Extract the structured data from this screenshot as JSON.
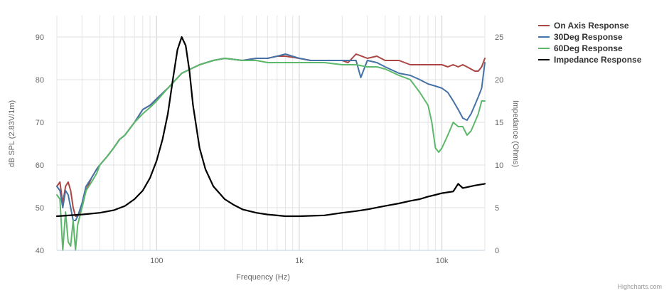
{
  "chart_data": {
    "type": "line",
    "xlabel": "Frequency (Hz)",
    "ylabel_left": "dB SPL (2.83V/1m)",
    "ylabel_right": "Impedance (Ohms)",
    "x_scale": "log",
    "xlim": [
      20,
      20000
    ],
    "x_ticks": [
      100,
      1000,
      10000
    ],
    "x_tick_labels": [
      "100",
      "1k",
      "10k"
    ],
    "ylim_left": [
      40,
      95
    ],
    "y_ticks_left": [
      40,
      50,
      60,
      70,
      80,
      90
    ],
    "ylim_right": [
      0,
      27.5
    ],
    "y_ticks_right": [
      0,
      5,
      10,
      15,
      20,
      25
    ],
    "grid": true,
    "legend_position": "top-right",
    "credit": "Highcharts.com",
    "series": [
      {
        "name": "On Axis Response",
        "axis": "left",
        "color": "#aa4643",
        "points": [
          [
            20,
            55
          ],
          [
            21,
            56
          ],
          [
            22,
            51
          ],
          [
            23,
            55
          ],
          [
            24,
            56
          ],
          [
            25,
            54
          ],
          [
            26,
            50
          ],
          [
            27,
            48
          ],
          [
            28,
            48
          ],
          [
            30,
            50
          ],
          [
            32,
            54
          ],
          [
            35,
            57
          ],
          [
            38,
            59
          ],
          [
            40,
            60
          ],
          [
            45,
            62
          ],
          [
            50,
            64
          ],
          [
            55,
            66
          ],
          [
            60,
            67
          ],
          [
            70,
            70
          ],
          [
            80,
            73
          ],
          [
            90,
            74
          ],
          [
            100,
            75.5
          ],
          [
            120,
            78
          ],
          [
            150,
            81.5
          ],
          [
            200,
            83.5
          ],
          [
            250,
            84.5
          ],
          [
            300,
            85
          ],
          [
            400,
            84.5
          ],
          [
            500,
            85
          ],
          [
            600,
            85
          ],
          [
            700,
            85.5
          ],
          [
            800,
            85.5
          ],
          [
            1000,
            85
          ],
          [
            1200,
            84.5
          ],
          [
            1500,
            84.5
          ],
          [
            2000,
            84.5
          ],
          [
            2200,
            84
          ],
          [
            2500,
            86
          ],
          [
            3000,
            85
          ],
          [
            3500,
            85.5
          ],
          [
            4000,
            84.5
          ],
          [
            5000,
            84.5
          ],
          [
            6000,
            83.5
          ],
          [
            7000,
            83.5
          ],
          [
            8000,
            83.5
          ],
          [
            9000,
            83.5
          ],
          [
            10000,
            83.5
          ],
          [
            11000,
            83
          ],
          [
            12000,
            83.5
          ],
          [
            13000,
            83
          ],
          [
            14000,
            83.5
          ],
          [
            15000,
            83
          ],
          [
            17000,
            82
          ],
          [
            18000,
            82
          ],
          [
            19000,
            83
          ],
          [
            20000,
            85
          ]
        ]
      },
      {
        "name": "30Deg Response",
        "axis": "left",
        "color": "#4572a7",
        "points": [
          [
            20,
            55
          ],
          [
            21,
            54
          ],
          [
            22,
            50
          ],
          [
            23,
            54
          ],
          [
            24,
            53
          ],
          [
            25,
            50
          ],
          [
            26,
            47
          ],
          [
            27,
            47
          ],
          [
            28,
            48
          ],
          [
            30,
            51
          ],
          [
            32,
            55
          ],
          [
            35,
            57
          ],
          [
            38,
            59
          ],
          [
            40,
            60
          ],
          [
            45,
            62
          ],
          [
            50,
            64
          ],
          [
            55,
            66
          ],
          [
            60,
            67
          ],
          [
            70,
            70
          ],
          [
            80,
            73
          ],
          [
            90,
            74
          ],
          [
            100,
            75.5
          ],
          [
            120,
            78
          ],
          [
            150,
            81.5
          ],
          [
            200,
            83.5
          ],
          [
            250,
            84.5
          ],
          [
            300,
            85
          ],
          [
            400,
            84.5
          ],
          [
            500,
            85
          ],
          [
            600,
            85
          ],
          [
            700,
            85.5
          ],
          [
            800,
            86
          ],
          [
            1000,
            85
          ],
          [
            1200,
            84.5
          ],
          [
            1500,
            84.5
          ],
          [
            2000,
            84.5
          ],
          [
            2500,
            84.5
          ],
          [
            2700,
            80.5
          ],
          [
            3000,
            84.5
          ],
          [
            3500,
            84
          ],
          [
            4000,
            83
          ],
          [
            5000,
            81.5
          ],
          [
            6000,
            81
          ],
          [
            7000,
            80
          ],
          [
            8000,
            79
          ],
          [
            9000,
            78.5
          ],
          [
            10000,
            78
          ],
          [
            11000,
            77
          ],
          [
            12000,
            75
          ],
          [
            13000,
            73
          ],
          [
            14000,
            71
          ],
          [
            15000,
            70.5
          ],
          [
            16000,
            72
          ],
          [
            17000,
            74
          ],
          [
            18000,
            76
          ],
          [
            19000,
            78
          ],
          [
            20000,
            84
          ]
        ]
      },
      {
        "name": "60Deg Response",
        "axis": "left",
        "color": "#5cb86a",
        "points": [
          [
            20,
            53
          ],
          [
            21,
            52
          ],
          [
            22,
            40
          ],
          [
            23,
            49
          ],
          [
            24,
            42
          ],
          [
            25,
            41
          ],
          [
            26,
            47
          ],
          [
            27,
            40
          ],
          [
            28,
            46
          ],
          [
            30,
            50
          ],
          [
            32,
            54
          ],
          [
            35,
            56
          ],
          [
            38,
            58
          ],
          [
            40,
            60
          ],
          [
            45,
            62
          ],
          [
            50,
            64
          ],
          [
            55,
            66
          ],
          [
            60,
            67
          ],
          [
            70,
            70
          ],
          [
            80,
            72
          ],
          [
            90,
            73.5
          ],
          [
            100,
            75
          ],
          [
            120,
            78
          ],
          [
            150,
            81.5
          ],
          [
            200,
            83.5
          ],
          [
            250,
            84.5
          ],
          [
            300,
            85
          ],
          [
            400,
            84.5
          ],
          [
            500,
            84.5
          ],
          [
            600,
            84
          ],
          [
            700,
            84
          ],
          [
            800,
            84
          ],
          [
            1000,
            84
          ],
          [
            1200,
            84
          ],
          [
            1500,
            84
          ],
          [
            2000,
            83.5
          ],
          [
            2500,
            83.5
          ],
          [
            3000,
            83
          ],
          [
            3500,
            83
          ],
          [
            4000,
            82.5
          ],
          [
            5000,
            81
          ],
          [
            6000,
            80
          ],
          [
            7000,
            77
          ],
          [
            8000,
            74
          ],
          [
            8500,
            70
          ],
          [
            9000,
            64
          ],
          [
            9500,
            63
          ],
          [
            10000,
            64
          ],
          [
            11000,
            67
          ],
          [
            12000,
            70
          ],
          [
            13000,
            69
          ],
          [
            14000,
            69
          ],
          [
            15000,
            67
          ],
          [
            16000,
            68
          ],
          [
            17000,
            70
          ],
          [
            18000,
            72
          ],
          [
            19000,
            75
          ],
          [
            20000,
            75
          ]
        ]
      },
      {
        "name": "Impedance Response",
        "axis": "right",
        "color": "#000000",
        "points": [
          [
            20,
            4
          ],
          [
            30,
            4.2
          ],
          [
            40,
            4.4
          ],
          [
            50,
            4.7
          ],
          [
            60,
            5.2
          ],
          [
            70,
            6
          ],
          [
            80,
            7
          ],
          [
            90,
            8.5
          ],
          [
            100,
            10.5
          ],
          [
            110,
            13
          ],
          [
            120,
            16
          ],
          [
            130,
            20
          ],
          [
            140,
            23.5
          ],
          [
            150,
            25
          ],
          [
            160,
            24
          ],
          [
            170,
            21
          ],
          [
            180,
            17
          ],
          [
            200,
            12
          ],
          [
            220,
            9.5
          ],
          [
            250,
            7.5
          ],
          [
            300,
            6
          ],
          [
            350,
            5.3
          ],
          [
            400,
            4.8
          ],
          [
            500,
            4.4
          ],
          [
            600,
            4.2
          ],
          [
            800,
            4
          ],
          [
            1000,
            4
          ],
          [
            1500,
            4.1
          ],
          [
            2000,
            4.4
          ],
          [
            2500,
            4.6
          ],
          [
            3000,
            4.8
          ],
          [
            4000,
            5.2
          ],
          [
            5000,
            5.5
          ],
          [
            6000,
            5.8
          ],
          [
            7000,
            6
          ],
          [
            8000,
            6.3
          ],
          [
            9000,
            6.5
          ],
          [
            10000,
            6.7
          ],
          [
            11000,
            6.8
          ],
          [
            12000,
            6.9
          ],
          [
            13000,
            7.8
          ],
          [
            14000,
            7.3
          ],
          [
            15000,
            7.4
          ],
          [
            17000,
            7.6
          ],
          [
            20000,
            7.8
          ]
        ]
      }
    ]
  }
}
